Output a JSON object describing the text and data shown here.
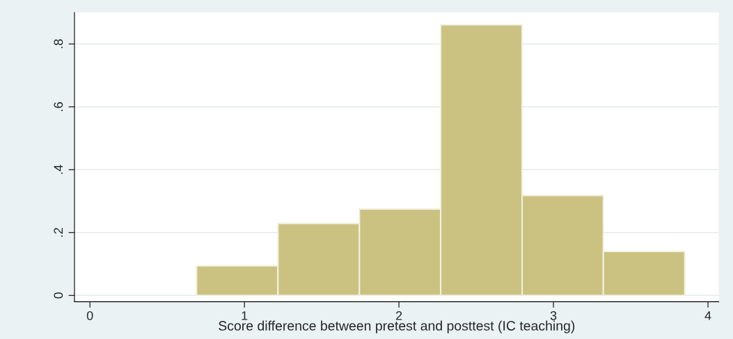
{
  "chart_data": {
    "type": "histogram",
    "xlabel": "Score difference between pretest and posttest (IC teaching)",
    "bins": [
      0.69,
      1.217,
      1.744,
      2.27,
      2.797,
      3.323,
      3.85
    ],
    "values": [
      0.094,
      0.229,
      0.275,
      0.861,
      0.318,
      0.14
    ],
    "color": "#cbc282",
    "xlim": [
      -0.1,
      4.07
    ],
    "xticks": [
      0,
      1,
      2,
      3,
      4
    ],
    "ylim": [
      -0.02,
      0.9
    ],
    "yticks": [
      {
        "value": 0,
        "label": "0"
      },
      {
        "value": 0.2,
        "label": ".2"
      },
      {
        "value": 0.4,
        "label": ".4"
      },
      {
        "value": 0.6,
        "label": ".6"
      },
      {
        "value": 0.8,
        "label": ".8"
      }
    ],
    "grid": "y"
  }
}
